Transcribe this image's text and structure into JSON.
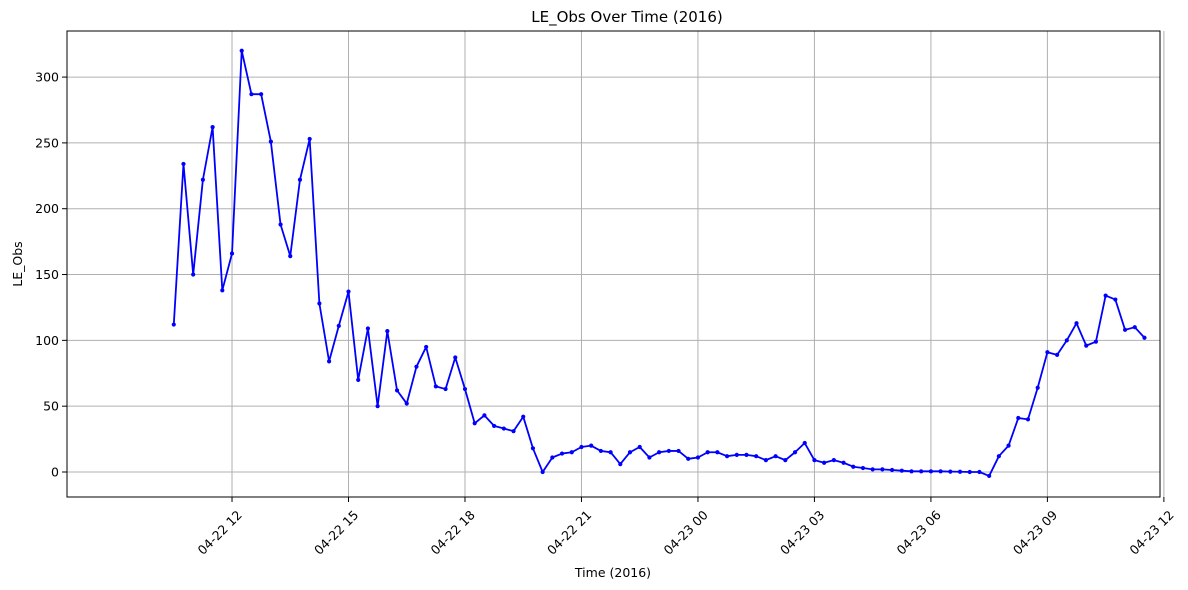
{
  "chart_data": {
    "type": "line",
    "title": "LE_Obs Over Time (2016)",
    "xlabel": "Time (2016)",
    "ylabel": "LE_Obs",
    "xlim_hours": [
      -4.25,
      23.9
    ],
    "ylim": [
      -19,
      335
    ],
    "grid": true,
    "line_color": "#0000ff",
    "x_ticks": [
      {
        "hours": 0,
        "label": "04-22 12"
      },
      {
        "hours": 3,
        "label": "04-22 15"
      },
      {
        "hours": 6,
        "label": "04-22 18"
      },
      {
        "hours": 9,
        "label": "04-22 21"
      },
      {
        "hours": 12,
        "label": "04-23 00"
      },
      {
        "hours": 15,
        "label": "04-23 03"
      },
      {
        "hours": 18,
        "label": "04-23 06"
      },
      {
        "hours": 21,
        "label": "04-23 09"
      },
      {
        "hours": 24,
        "label": "04-23 12"
      }
    ],
    "y_ticks": [
      0,
      50,
      100,
      150,
      200,
      250,
      300
    ],
    "series": [
      {
        "start": "04-22 10:30",
        "interval_minutes": 15,
        "values": [
          112,
          234,
          150,
          222,
          262,
          138,
          166,
          320,
          287,
          287,
          251,
          188,
          164,
          222,
          253,
          128,
          84,
          111,
          137,
          70,
          109,
          50,
          107,
          62,
          52,
          80,
          95,
          65,
          63,
          87,
          63,
          37,
          43,
          35,
          33,
          31,
          42,
          18,
          0,
          11,
          14,
          15,
          19,
          20,
          16,
          15,
          6,
          15,
          19,
          11,
          15,
          16,
          16,
          10,
          11,
          15,
          15,
          12,
          13,
          13,
          12,
          9,
          12,
          9,
          15,
          22,
          9,
          7,
          9,
          7,
          4,
          3,
          2,
          2,
          1.5,
          1,
          0.5,
          0.5,
          0.5,
          0.5,
          0.3,
          0.2,
          0,
          0,
          -3,
          12,
          20,
          41,
          40,
          64,
          91,
          89,
          100,
          113,
          96,
          99,
          134,
          131,
          108,
          110,
          102
        ]
      }
    ]
  }
}
